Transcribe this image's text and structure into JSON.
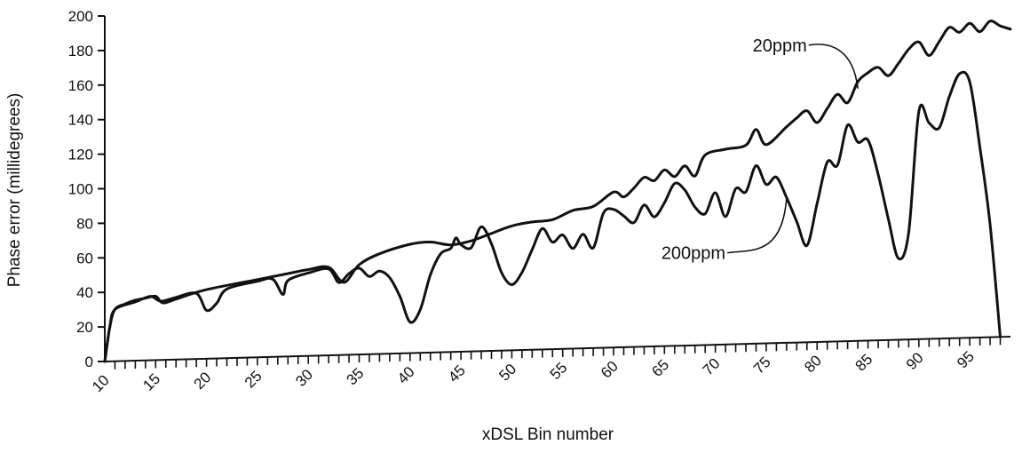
{
  "chart_data": {
    "type": "line",
    "xlabel": "xDSL Bin number",
    "ylabel": "Phase error (millidegrees)",
    "xlim": [
      10,
      99
    ],
    "ylim": [
      0,
      200
    ],
    "x_ticks": [
      10,
      15,
      20,
      25,
      30,
      35,
      40,
      45,
      50,
      55,
      60,
      65,
      70,
      75,
      80,
      85,
      90,
      95
    ],
    "y_ticks": [
      0,
      20,
      40,
      60,
      80,
      100,
      120,
      140,
      160,
      180,
      200
    ],
    "series": [
      {
        "name": "20ppm",
        "points": [
          [
            10,
            0
          ],
          [
            10.5,
            20
          ],
          [
            11,
            30
          ],
          [
            12,
            33
          ],
          [
            13,
            35
          ],
          [
            14,
            36
          ],
          [
            15,
            37
          ],
          [
            15.7,
            33
          ],
          [
            17,
            35
          ],
          [
            20,
            40
          ],
          [
            25,
            45
          ],
          [
            28,
            48
          ],
          [
            30,
            50
          ],
          [
            32,
            51
          ],
          [
            33.5,
            42
          ],
          [
            35,
            52
          ],
          [
            37,
            58
          ],
          [
            40,
            63
          ],
          [
            42,
            64
          ],
          [
            44,
            62
          ],
          [
            46,
            64
          ],
          [
            48,
            68
          ],
          [
            50,
            72
          ],
          [
            52,
            74
          ],
          [
            54,
            75
          ],
          [
            56,
            80
          ],
          [
            58,
            82
          ],
          [
            60,
            90
          ],
          [
            61,
            87
          ],
          [
            62,
            92
          ],
          [
            63,
            98
          ],
          [
            64,
            96
          ],
          [
            65,
            102
          ],
          [
            66,
            98
          ],
          [
            67,
            104
          ],
          [
            68,
            98
          ],
          [
            69,
            110
          ],
          [
            71,
            113
          ],
          [
            73,
            115
          ],
          [
            74,
            124
          ],
          [
            75,
            115
          ],
          [
            77,
            125
          ],
          [
            78,
            130
          ],
          [
            79,
            134
          ],
          [
            80,
            127
          ],
          [
            81,
            135
          ],
          [
            82,
            143
          ],
          [
            83,
            138
          ],
          [
            84,
            150
          ],
          [
            85,
            155
          ],
          [
            86,
            158
          ],
          [
            87,
            153
          ],
          [
            88,
            160
          ],
          [
            89,
            168
          ],
          [
            90,
            172
          ],
          [
            91,
            164
          ],
          [
            92,
            172
          ],
          [
            93,
            180
          ],
          [
            94,
            177
          ],
          [
            95,
            182
          ],
          [
            96,
            177
          ],
          [
            97,
            183
          ],
          [
            98,
            180
          ],
          [
            99,
            178
          ]
        ]
      },
      {
        "name": "200ppm",
        "points": [
          [
            10,
            0
          ],
          [
            10.5,
            20
          ],
          [
            11,
            30
          ],
          [
            13,
            34
          ],
          [
            14.5,
            37
          ],
          [
            15.5,
            34
          ],
          [
            17,
            36
          ],
          [
            19,
            38
          ],
          [
            20,
            28
          ],
          [
            21,
            32
          ],
          [
            22,
            40
          ],
          [
            25,
            44
          ],
          [
            26.5,
            45
          ],
          [
            27.5,
            36
          ],
          [
            28,
            44
          ],
          [
            30,
            48
          ],
          [
            32,
            50
          ],
          [
            33,
            42
          ],
          [
            34,
            47
          ],
          [
            35,
            50
          ],
          [
            36,
            45
          ],
          [
            37,
            48
          ],
          [
            38,
            44
          ],
          [
            39,
            33
          ],
          [
            40,
            18
          ],
          [
            41,
            25
          ],
          [
            42,
            45
          ],
          [
            43,
            57
          ],
          [
            44,
            60
          ],
          [
            44.5,
            66
          ],
          [
            45,
            62
          ],
          [
            46,
            60
          ],
          [
            47,
            72
          ],
          [
            48,
            62
          ],
          [
            49,
            45
          ],
          [
            50,
            38
          ],
          [
            51,
            45
          ],
          [
            52,
            58
          ],
          [
            53,
            70
          ],
          [
            54,
            62
          ],
          [
            55,
            66
          ],
          [
            56,
            58
          ],
          [
            57,
            66
          ],
          [
            58,
            58
          ],
          [
            59,
            78
          ],
          [
            60,
            80
          ],
          [
            61,
            76
          ],
          [
            62,
            72
          ],
          [
            63,
            82
          ],
          [
            64,
            75
          ],
          [
            65,
            83
          ],
          [
            66,
            94
          ],
          [
            67,
            90
          ],
          [
            68,
            80
          ],
          [
            69,
            76
          ],
          [
            70,
            88
          ],
          [
            71,
            74
          ],
          [
            72,
            90
          ],
          [
            73,
            88
          ],
          [
            74,
            103
          ],
          [
            75,
            92
          ],
          [
            76,
            96
          ],
          [
            77,
            84
          ],
          [
            78,
            70
          ],
          [
            79,
            56
          ],
          [
            80,
            80
          ],
          [
            81,
            104
          ],
          [
            82,
            102
          ],
          [
            83,
            125
          ],
          [
            84,
            115
          ],
          [
            85,
            116
          ],
          [
            86,
            96
          ],
          [
            87,
            70
          ],
          [
            88,
            47
          ],
          [
            89,
            62
          ],
          [
            90,
            132
          ],
          [
            91,
            125
          ],
          [
            92,
            122
          ],
          [
            93,
            140
          ],
          [
            94,
            153
          ],
          [
            95,
            148
          ],
          [
            96,
            110
          ],
          [
            97,
            65
          ],
          [
            98,
            0
          ]
        ]
      }
    ],
    "annotations": [
      {
        "text": "20ppm",
        "series": "20ppm",
        "label_at": [
          79,
          172
        ],
        "points_to": [
          84,
          146
        ]
      },
      {
        "text": "200ppm",
        "series": "200ppm",
        "label_at": [
          71,
          53
        ],
        "points_to": [
          77,
          84
        ]
      }
    ]
  }
}
